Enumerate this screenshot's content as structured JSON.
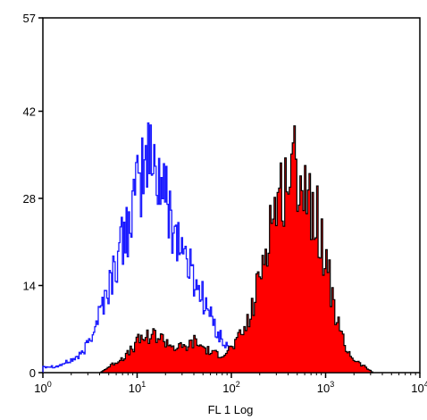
{
  "chart_data": {
    "type": "area",
    "title": "",
    "xlabel": "FL 1 Log",
    "ylabel": "",
    "x_scale": "log",
    "xlim": [
      1,
      10000
    ],
    "ylim": [
      0,
      57
    ],
    "grid": false,
    "legend": "none",
    "y_ticks": [
      0,
      14,
      28,
      42,
      57
    ],
    "x_ticks": [
      {
        "base": "10",
        "exp": "0",
        "value": 1
      },
      {
        "base": "10",
        "exp": "1",
        "value": 10
      },
      {
        "base": "10",
        "exp": "2",
        "value": 100
      },
      {
        "base": "10",
        "exp": "3",
        "value": 1000
      },
      {
        "base": "10",
        "exp": "4",
        "value": 10000
      }
    ],
    "series": [
      {
        "style": "outline",
        "color": "#1a1aff",
        "x": [
          1.0,
          1.4,
          2.0,
          2.6,
          3.2,
          4.0,
          5.0,
          6.3,
          7.9,
          10,
          12.6,
          15.8,
          20,
          25,
          31.6,
          40,
          50,
          63,
          79,
          100,
          126,
          158,
          200
        ],
        "y": [
          1,
          1,
          2,
          3,
          6,
          10,
          14,
          19,
          24,
          29,
          35,
          33,
          28,
          23,
          19,
          15,
          12,
          8,
          5,
          3,
          2,
          1,
          0
        ]
      },
      {
        "style": "filled",
        "color": "#ff0000",
        "x": [
          4.0,
          5.0,
          6.3,
          7.9,
          10,
          12.6,
          15.8,
          20,
          25,
          31.6,
          40,
          50,
          63,
          79,
          100,
          126,
          158,
          200,
          251,
          316,
          398,
          501,
          631,
          794,
          1000,
          1259,
          1585,
          2000,
          2512,
          3162
        ],
        "y": [
          0,
          1,
          2,
          3,
          5,
          6,
          6,
          5,
          4,
          4,
          5,
          4,
          3,
          3,
          4,
          6,
          9,
          16,
          24,
          28,
          32,
          33,
          29,
          25,
          18,
          9,
          4,
          2,
          1,
          0
        ]
      }
    ]
  }
}
